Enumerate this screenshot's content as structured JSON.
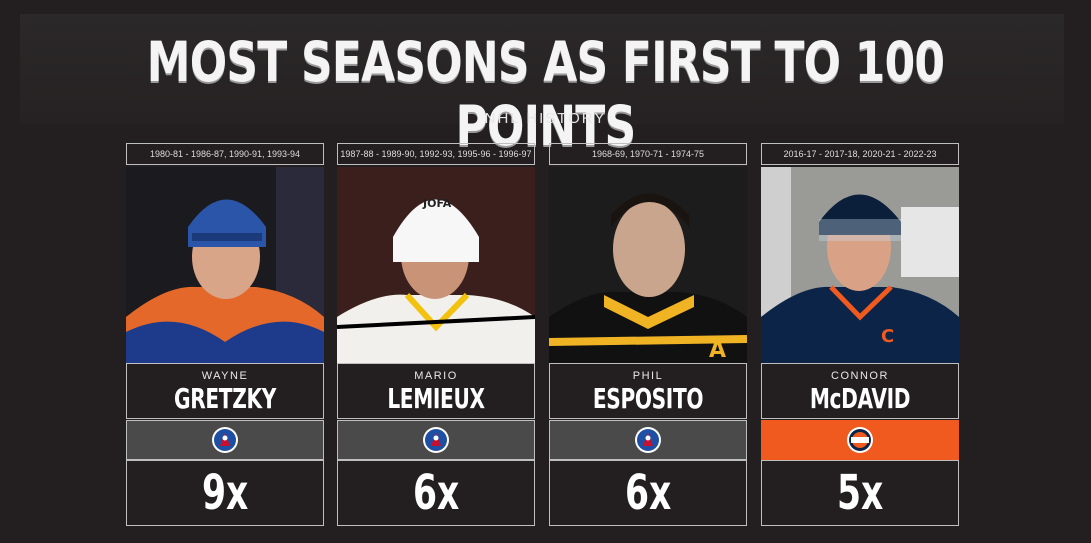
{
  "title": "MOST SEASONS AS FIRST TO 100 POINTS",
  "subtitle": "NHL HISTORY",
  "players": [
    {
      "years": "1980-81 - 1986-87, 1990-91, 1993-94",
      "first": "WAYNE",
      "last": "GRETZKY",
      "logo": "hall-of-fame-logo",
      "count": "9x"
    },
    {
      "years": "1987-88 - 1989-90, 1992-93, 1995-96 - 1996-97",
      "first": "MARIO",
      "last": "LEMIEUX",
      "logo": "hall-of-fame-logo",
      "count": "6x"
    },
    {
      "years": "1968-69, 1970-71 - 1974-75",
      "first": "PHIL",
      "last": "ESPOSITO",
      "logo": "hall-of-fame-logo",
      "count": "6x"
    },
    {
      "years": "2016-17 - 2017-18, 2020-21 - 2022-23",
      "first": "CONNOR",
      "last": "McDAVID",
      "logo": "oilers-logo",
      "count": "5x"
    }
  ],
  "colors": {
    "background": "#231f20",
    "oilers_orange": "#f15a1e",
    "hof_bar": "#4a4a4a"
  }
}
